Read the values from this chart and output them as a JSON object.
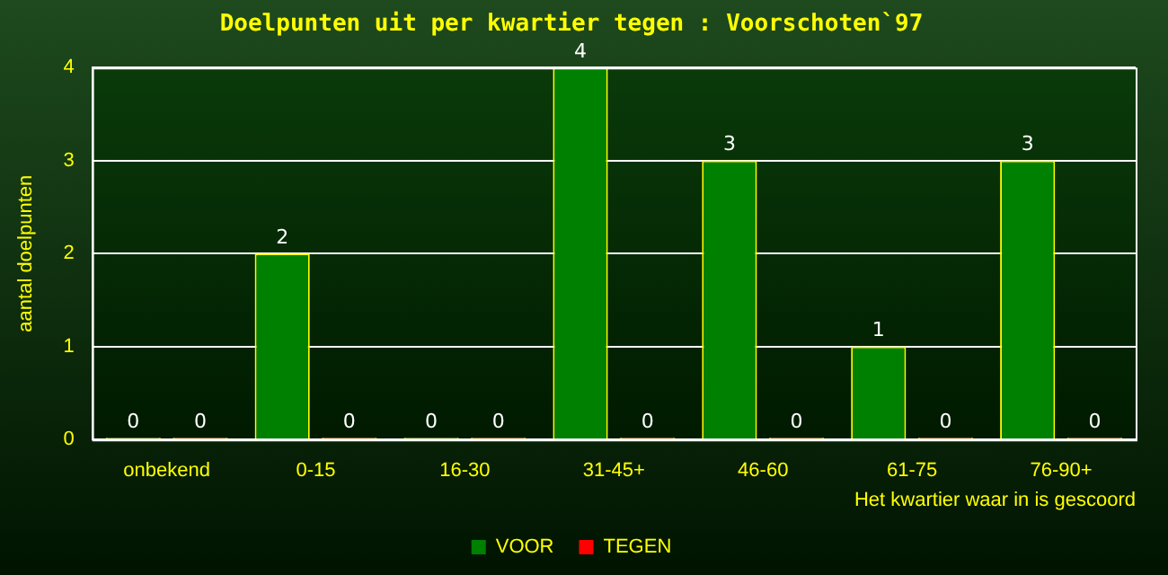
{
  "chart_data": {
    "type": "bar",
    "title": "Doelpunten uit per kwartier tegen : Voorschoten`97",
    "xlabel": "Het kwartier waar in is gescoord",
    "ylabel": "aantal doelpunten",
    "categories": [
      "onbekend",
      "0-15",
      "16-30",
      "31-45+",
      "46-60",
      "61-75",
      "76-90+"
    ],
    "series": [
      {
        "name": "VOOR",
        "color": "#008000",
        "values": [
          0,
          2,
          0,
          4,
          3,
          1,
          3
        ]
      },
      {
        "name": "TEGEN",
        "color": "#ff0000",
        "values": [
          0,
          0,
          0,
          0,
          0,
          0,
          0
        ]
      }
    ],
    "ylim": [
      0,
      4
    ],
    "yticks": [
      0,
      1,
      2,
      3,
      4
    ],
    "grid": "y",
    "legend": "bottom",
    "data_labels": true
  }
}
